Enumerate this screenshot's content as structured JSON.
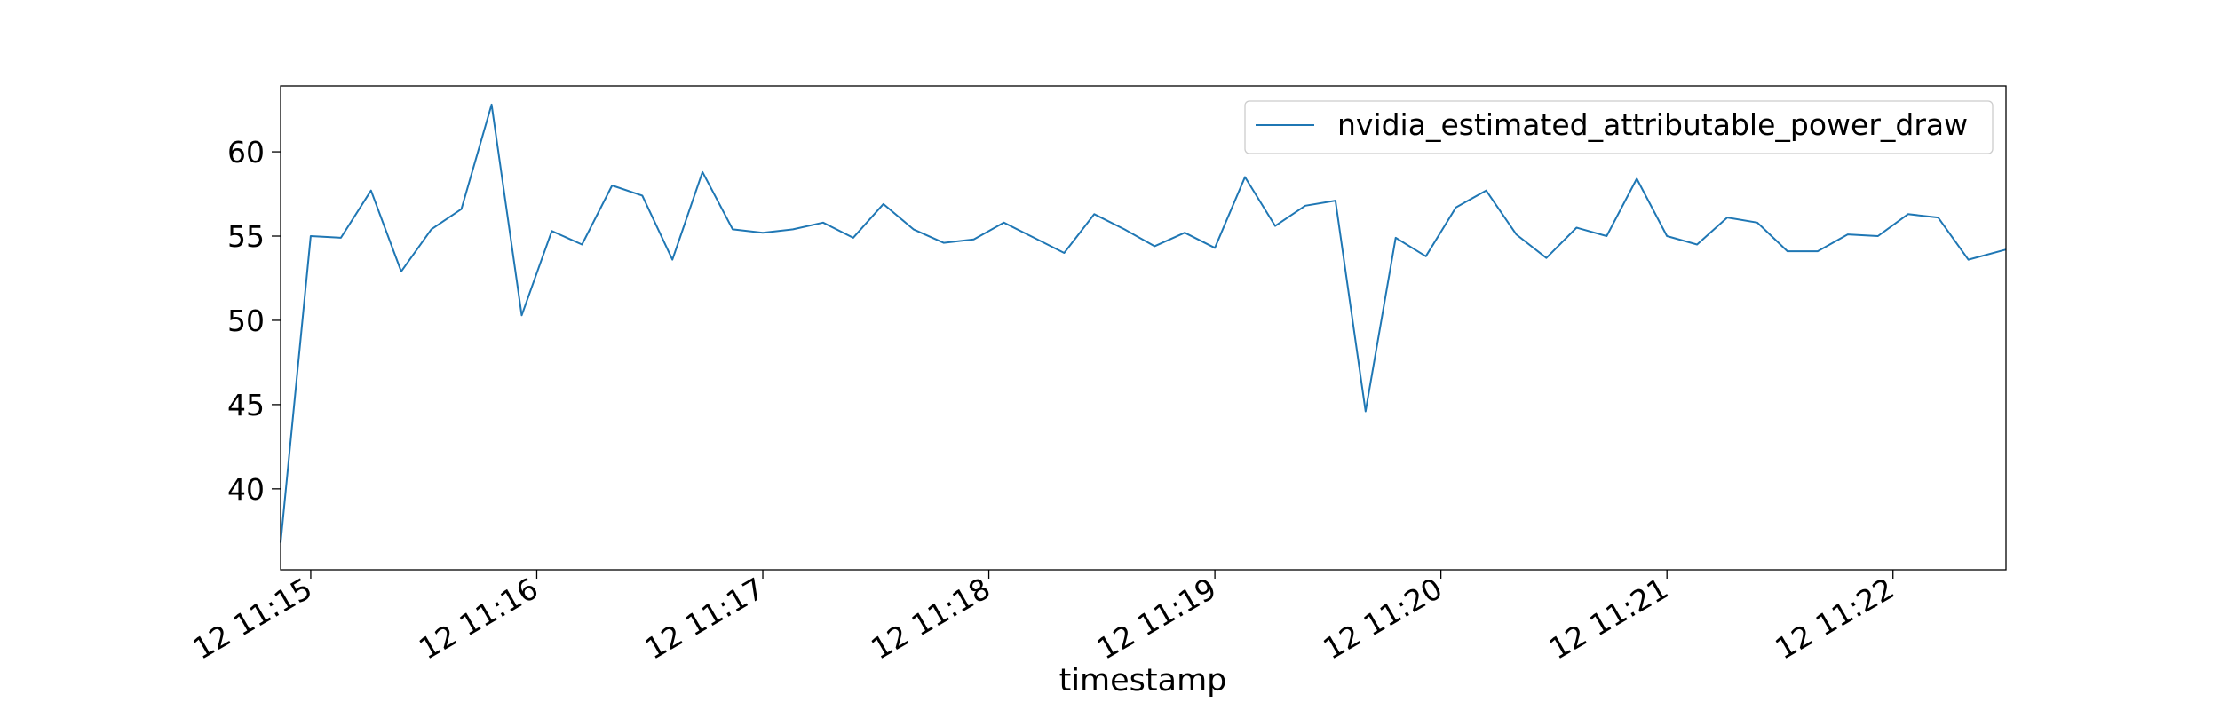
{
  "chart_data": {
    "type": "line",
    "title": "",
    "xlabel": "timestamp",
    "ylabel": "",
    "x_tick_labels": [
      "12 11:15",
      "12 11:16",
      "12 11:17",
      "12 11:18",
      "12 11:19",
      "12 11:20",
      "12 11:21",
      "12 11:22"
    ],
    "y_ticks": [
      40,
      45,
      50,
      55,
      60
    ],
    "xlim": [
      "11:14:52",
      "11:22:30"
    ],
    "ylim": [
      35.2,
      63.9
    ],
    "grid": false,
    "legend": {
      "position": "top-right"
    },
    "series": [
      {
        "name": "nvidia_estimated_attributable_power_draw",
        "color": "#1f77b4",
        "x": [
          "11:14:52",
          "11:15:00",
          "11:15:08",
          "11:15:16",
          "11:15:24",
          "11:15:32",
          "11:15:40",
          "11:15:48",
          "11:15:56",
          "11:16:04",
          "11:16:12",
          "11:16:20",
          "11:16:28",
          "11:16:36",
          "11:16:44",
          "11:16:52",
          "11:17:00",
          "11:17:08",
          "11:17:16",
          "11:17:24",
          "11:17:32",
          "11:17:40",
          "11:17:48",
          "11:17:56",
          "11:18:04",
          "11:18:12",
          "11:18:20",
          "11:18:28",
          "11:18:36",
          "11:18:44",
          "11:18:52",
          "11:19:00",
          "11:19:08",
          "11:19:16",
          "11:19:24",
          "11:19:32",
          "11:19:40",
          "11:19:48",
          "11:19:56",
          "11:20:04",
          "11:20:12",
          "11:20:20",
          "11:20:28",
          "11:20:36",
          "11:20:44",
          "11:20:52",
          "11:21:00",
          "11:21:08",
          "11:21:16",
          "11:21:24",
          "11:21:32",
          "11:21:40",
          "11:21:48",
          "11:21:56",
          "11:22:04",
          "11:22:12",
          "11:22:20",
          "11:22:30"
        ],
        "values": [
          36.8,
          55.0,
          54.9,
          57.7,
          52.9,
          55.4,
          56.6,
          62.8,
          50.3,
          55.3,
          54.5,
          58.0,
          57.4,
          53.6,
          58.8,
          55.4,
          55.2,
          55.4,
          55.8,
          54.9,
          56.9,
          55.4,
          54.6,
          54.8,
          55.8,
          54.9,
          54.0,
          56.3,
          55.4,
          54.4,
          55.2,
          54.3,
          58.5,
          55.6,
          56.8,
          57.1,
          44.6,
          54.9,
          53.8,
          56.7,
          57.7,
          55.1,
          53.7,
          55.5,
          55.0,
          58.4,
          55.0,
          54.5,
          56.1,
          55.8,
          54.1,
          54.1,
          55.1,
          55.0,
          56.3,
          56.1,
          53.6,
          54.2
        ]
      }
    ]
  }
}
